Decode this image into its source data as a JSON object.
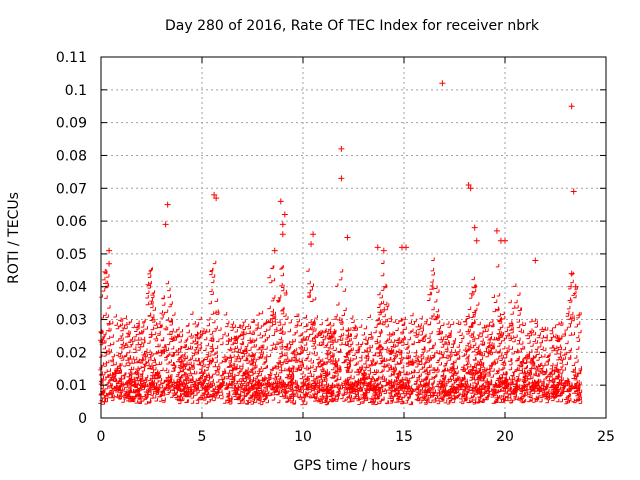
{
  "chart_data": {
    "type": "scatter",
    "title": "Day 280 of 2016, Rate Of TEC Index for receiver nbrk",
    "xlabel": "GPS time / hours",
    "ylabel": "ROTI / TECUs",
    "xlim": [
      0,
      25
    ],
    "ylim": [
      0,
      0.11
    ],
    "xticks": [
      0,
      5,
      10,
      15,
      20,
      25
    ],
    "yticks": [
      0,
      0.01,
      0.02,
      0.03,
      0.04,
      0.05,
      0.06,
      0.07,
      0.08,
      0.09,
      0.1,
      0.11
    ],
    "xtick_labels": [
      "0",
      "5",
      "10",
      "15",
      "20",
      "25"
    ],
    "ytick_labels": [
      "0",
      "0.01",
      "0.02",
      "0.03",
      "0.04",
      "0.05",
      "0.06",
      "0.07",
      "0.08",
      "0.09",
      "0.1",
      "0.11"
    ],
    "grid": true,
    "marker": "+",
    "series_color": "#ff0000",
    "series": [
      {
        "name": "ROTI",
        "notable_points": [
          {
            "x": 0.4,
            "y": 0.051
          },
          {
            "x": 0.4,
            "y": 0.047
          },
          {
            "x": 3.3,
            "y": 0.065
          },
          {
            "x": 3.2,
            "y": 0.059
          },
          {
            "x": 5.6,
            "y": 0.068
          },
          {
            "x": 5.7,
            "y": 0.067
          },
          {
            "x": 8.9,
            "y": 0.066
          },
          {
            "x": 9.1,
            "y": 0.062
          },
          {
            "x": 9.0,
            "y": 0.059
          },
          {
            "x": 9.0,
            "y": 0.056
          },
          {
            "x": 8.6,
            "y": 0.051
          },
          {
            "x": 10.5,
            "y": 0.056
          },
          {
            "x": 10.4,
            "y": 0.053
          },
          {
            "x": 11.9,
            "y": 0.082
          },
          {
            "x": 11.9,
            "y": 0.073
          },
          {
            "x": 12.2,
            "y": 0.055
          },
          {
            "x": 13.7,
            "y": 0.052
          },
          {
            "x": 14.0,
            "y": 0.051
          },
          {
            "x": 14.9,
            "y": 0.052
          },
          {
            "x": 15.1,
            "y": 0.052
          },
          {
            "x": 16.9,
            "y": 0.102
          },
          {
            "x": 18.2,
            "y": 0.071
          },
          {
            "x": 18.3,
            "y": 0.07
          },
          {
            "x": 18.5,
            "y": 0.058
          },
          {
            "x": 18.6,
            "y": 0.054
          },
          {
            "x": 19.6,
            "y": 0.057
          },
          {
            "x": 19.8,
            "y": 0.054
          },
          {
            "x": 20.0,
            "y": 0.054
          },
          {
            "x": 21.5,
            "y": 0.048
          },
          {
            "x": 23.3,
            "y": 0.095
          },
          {
            "x": 23.4,
            "y": 0.069
          },
          {
            "x": 23.3,
            "y": 0.044
          },
          {
            "x": 23.5,
            "y": 0.04
          }
        ],
        "bulk_description_values": {
          "x_range": [
            0,
            23.8
          ],
          "typical_range": [
            0.003,
            0.03
          ],
          "burst_hours": [
            0.3,
            2.5,
            3.3,
            5.6,
            8.5,
            9.0,
            10.4,
            11.9,
            14.0,
            16.5,
            18.5,
            19.7,
            20.5,
            23.4
          ]
        }
      }
    ]
  }
}
